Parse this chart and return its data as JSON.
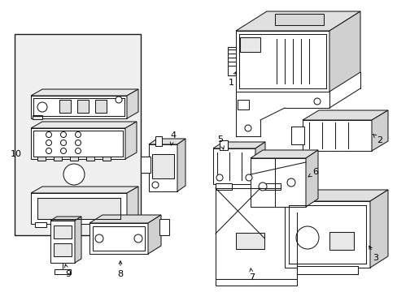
{
  "bg": "#ffffff",
  "lc": "#1a1a1a",
  "lw": 0.75,
  "fig_w": 4.89,
  "fig_h": 3.6,
  "dpi": 100
}
